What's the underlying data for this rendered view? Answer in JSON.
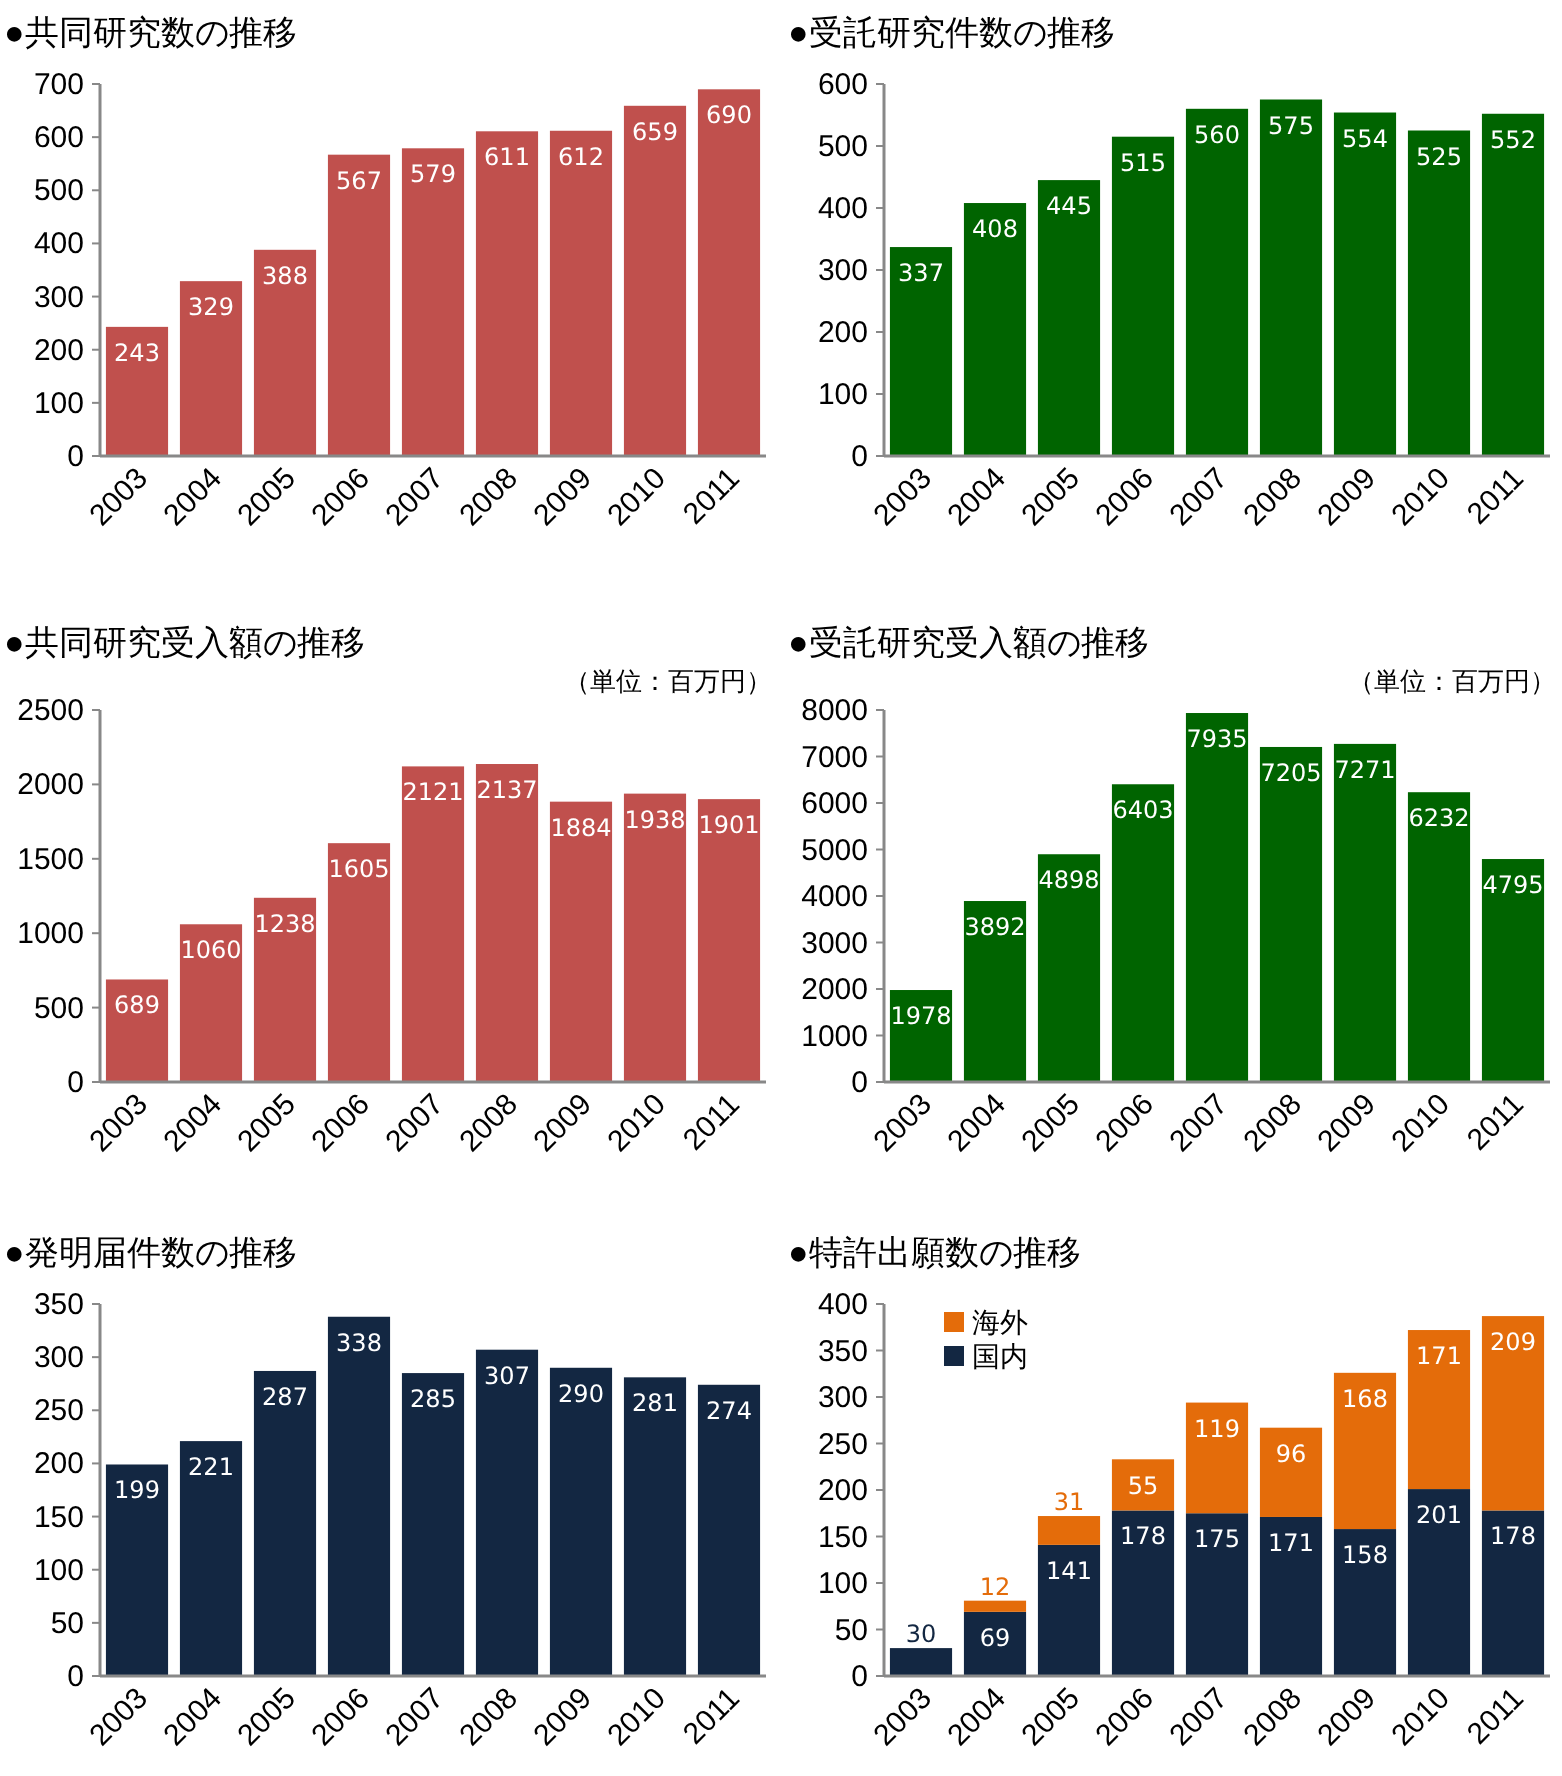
{
  "chart_data": [
    {
      "type": "bar",
      "title": "●共同研究数の推移",
      "categories": [
        "2003",
        "2004",
        "2005",
        "2006",
        "2007",
        "2008",
        "2009",
        "2010",
        "2011"
      ],
      "series": [
        {
          "color": "#c0504d",
          "values": [
            243,
            329,
            388,
            567,
            579,
            611,
            612,
            659,
            690
          ]
        }
      ],
      "ylim": [
        0,
        700
      ],
      "yticks": [
        0,
        100,
        200,
        300,
        400,
        500,
        600,
        700
      ],
      "data_labels": true
    },
    {
      "type": "bar",
      "title": "●受託研究件数の推移",
      "categories": [
        "2003",
        "2004",
        "2005",
        "2006",
        "2007",
        "2008",
        "2009",
        "2010",
        "2011"
      ],
      "series": [
        {
          "color": "#006400",
          "values": [
            337,
            408,
            445,
            515,
            560,
            575,
            554,
            525,
            552
          ]
        }
      ],
      "ylim": [
        0,
        600
      ],
      "yticks": [
        0,
        100,
        200,
        300,
        400,
        500,
        600
      ],
      "data_labels": true
    },
    {
      "type": "bar",
      "title": "●共同研究受入額の推移",
      "subtitle": "（単位：百万円）",
      "categories": [
        "2003",
        "2004",
        "2005",
        "2006",
        "2007",
        "2008",
        "2009",
        "2010",
        "2011"
      ],
      "series": [
        {
          "color": "#c0504d",
          "values": [
            689,
            1060,
            1238,
            1605,
            2121,
            2137,
            1884,
            1938,
            1901
          ]
        }
      ],
      "ylim": [
        0,
        2500
      ],
      "yticks": [
        0,
        500,
        1000,
        1500,
        2000,
        2500
      ],
      "data_labels": true
    },
    {
      "type": "bar",
      "title": "●受託研究受入額の推移",
      "subtitle": "（単位：百万円）",
      "categories": [
        "2003",
        "2004",
        "2005",
        "2006",
        "2007",
        "2008",
        "2009",
        "2010",
        "2011"
      ],
      "series": [
        {
          "color": "#006400",
          "values": [
            1978,
            3892,
            4898,
            6403,
            7935,
            7205,
            7271,
            6232,
            4795
          ]
        }
      ],
      "ylim": [
        0,
        8000
      ],
      "yticks": [
        0,
        1000,
        2000,
        3000,
        4000,
        5000,
        6000,
        7000,
        8000
      ],
      "data_labels": true
    },
    {
      "type": "bar",
      "title": "●発明届件数の推移",
      "categories": [
        "2003",
        "2004",
        "2005",
        "2006",
        "2007",
        "2008",
        "2009",
        "2010",
        "2011"
      ],
      "series": [
        {
          "color": "#132742",
          "values": [
            199,
            221,
            287,
            338,
            285,
            307,
            290,
            281,
            274
          ]
        }
      ],
      "ylim": [
        0,
        350
      ],
      "yticks": [
        0,
        50,
        100,
        150,
        200,
        250,
        300,
        350
      ],
      "data_labels": true
    },
    {
      "type": "bar",
      "title": "●特許出願数の推移",
      "categories": [
        "2003",
        "2004",
        "2005",
        "2006",
        "2007",
        "2008",
        "2009",
        "2010",
        "2011"
      ],
      "stacked": true,
      "legend": "top left",
      "series": [
        {
          "name": "国内",
          "color": "#132742",
          "values": [
            30,
            69,
            141,
            178,
            175,
            171,
            158,
            201,
            178
          ]
        },
        {
          "name": "海外",
          "color": "#e46c0a",
          "values": [
            null,
            12,
            31,
            55,
            119,
            96,
            168,
            171,
            209
          ]
        }
      ],
      "ylim": [
        0,
        400
      ],
      "yticks": [
        0,
        50,
        100,
        150,
        200,
        250,
        300,
        350,
        400
      ],
      "data_labels": true
    }
  ]
}
